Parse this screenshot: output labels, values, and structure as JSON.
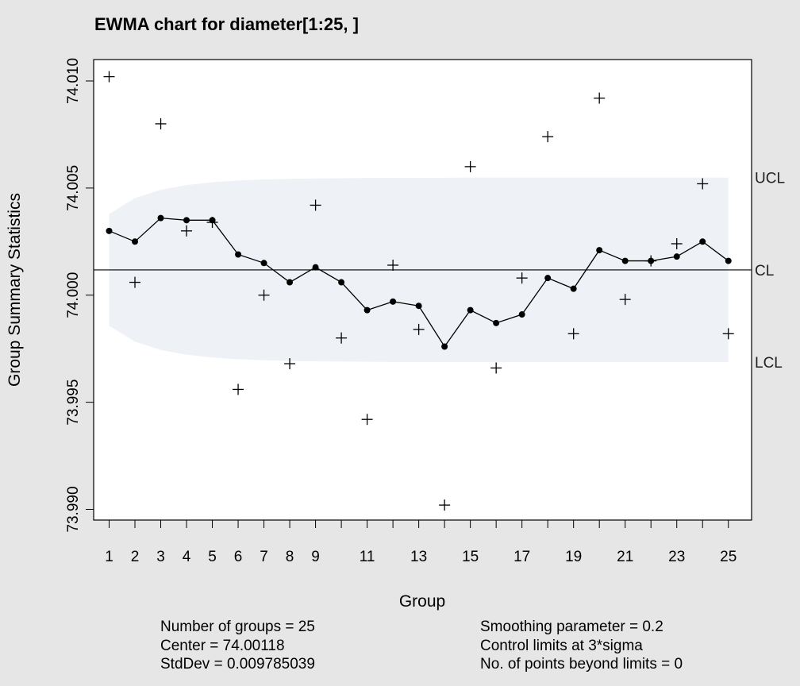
{
  "chart_data": {
    "type": "line",
    "title": "EWMA chart for diameter[1:25, ]",
    "xlabel": "Group",
    "ylabel": "Group Summary Statistics",
    "x_tick_labels": [
      "1",
      "2",
      "3",
      "4",
      "5",
      "6",
      "7",
      "8",
      "9",
      "11",
      "13",
      "15",
      "17",
      "19",
      "21",
      "23",
      "25"
    ],
    "y_tick_labels": [
      "73.990",
      "73.995",
      "74.000",
      "74.005",
      "74.010"
    ],
    "y_ticks": [
      73.99,
      73.995,
      74.0,
      74.005,
      74.01
    ],
    "xlim": [
      0.4,
      25.9
    ],
    "ylim": [
      73.9895,
      74.011
    ],
    "groups": [
      1,
      2,
      3,
      4,
      5,
      6,
      7,
      8,
      9,
      10,
      11,
      12,
      13,
      14,
      15,
      16,
      17,
      18,
      19,
      20,
      21,
      22,
      23,
      24,
      25
    ],
    "series": [
      {
        "name": "group statistics",
        "marker": "plus",
        "values": [
          74.0102,
          74.0006,
          74.008,
          74.003,
          74.0034,
          73.9956,
          74.0,
          73.9968,
          74.0042,
          73.998,
          73.9942,
          74.0014,
          73.9984,
          73.9902,
          74.006,
          73.9966,
          74.0008,
          74.0074,
          73.9982,
          74.0092,
          73.9998,
          74.0016,
          74.0024,
          74.0052,
          73.9982
        ]
      },
      {
        "name": "EWMA",
        "marker": "dot",
        "values": [
          74.003,
          74.0025,
          74.0036,
          74.0035,
          74.0035,
          74.0019,
          74.0015,
          74.0006,
          74.0013,
          74.0006,
          73.9993,
          73.9997,
          73.9995,
          73.9976,
          73.9993,
          73.9987,
          73.9991,
          74.0008,
          74.0003,
          74.0021,
          74.0016,
          74.0016,
          74.0018,
          74.0025,
          74.0016
        ]
      }
    ],
    "center_line": 74.00118,
    "limits": {
      "upper": [
        74.00379,
        74.00453,
        74.00492,
        74.00514,
        74.00527,
        74.00535,
        74.0054,
        74.00543,
        74.00545,
        74.00546,
        74.00547,
        74.00548,
        74.00548,
        74.00548,
        74.00549,
        74.00549,
        74.00549,
        74.00549,
        74.00549,
        74.00549,
        74.00549,
        74.00549,
        74.00549,
        74.00549,
        74.00549
      ],
      "lower": [
        73.99857,
        73.99783,
        73.99744,
        73.99722,
        73.99709,
        73.99701,
        73.99696,
        73.99693,
        73.99691,
        73.9969,
        73.99689,
        73.99688,
        73.99688,
        73.99688,
        73.99687,
        73.99687,
        73.99687,
        73.99687,
        73.99687,
        73.99687,
        73.99687,
        73.99687,
        73.99687,
        73.99687,
        73.99687
      ]
    },
    "limit_labels": {
      "upper": "UCL",
      "center": "CL",
      "lower": "LCL"
    },
    "grid": false,
    "band_color": "#eef1f5",
    "line_color": "#000000"
  },
  "stats": {
    "left": [
      "Number of groups = 25",
      "Center = 74.00118",
      "StdDev = 0.009785039"
    ],
    "right": [
      "Smoothing parameter =  0.2",
      "Control limits at 3*sigma",
      "No. of points beyond limits = 0"
    ]
  }
}
